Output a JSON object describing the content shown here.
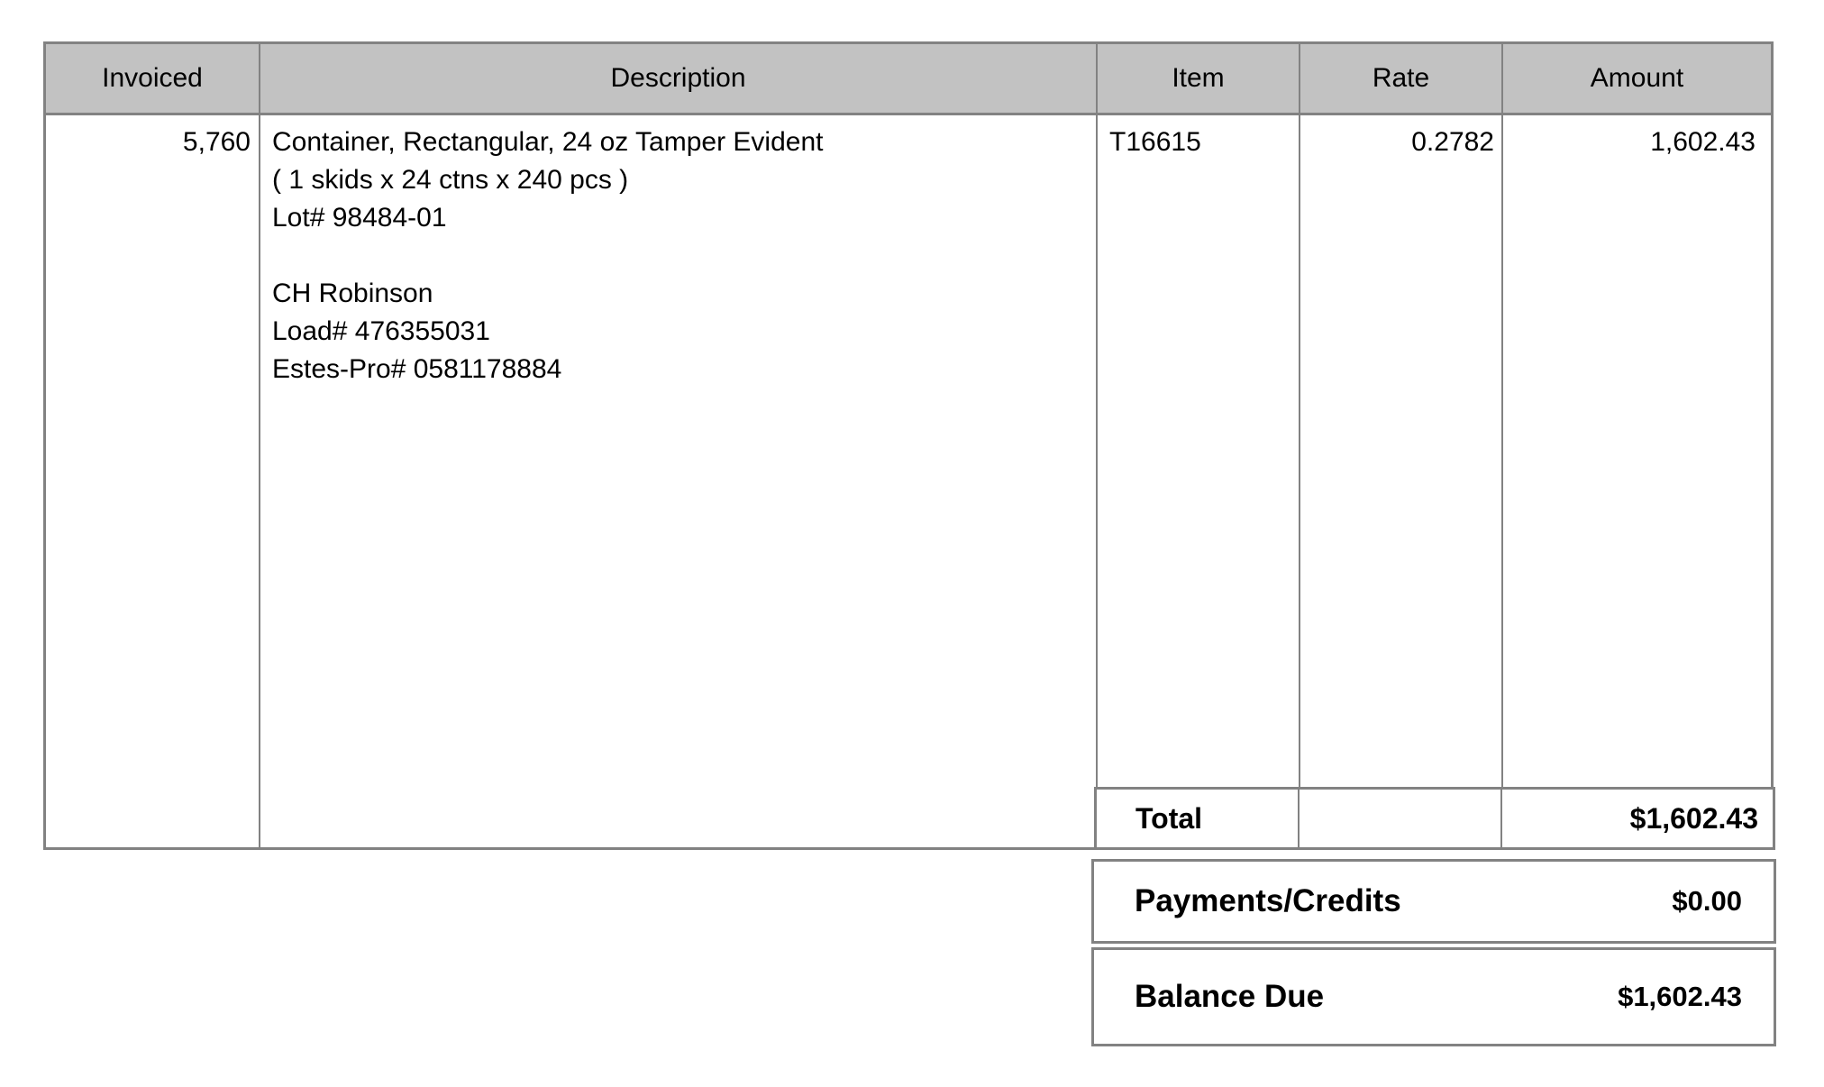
{
  "table": {
    "headers": {
      "invoiced": "Invoiced",
      "description": "Description",
      "item": "Item",
      "rate": "Rate",
      "amount": "Amount"
    },
    "row": {
      "invoiced": "5,760",
      "description": "Container, Rectangular, 24 oz Tamper Evident\n( 1 skids x 24 ctns x 240 pcs )\nLot# 98484-01\n\nCH Robinson\nLoad# 476355031\nEstes-Pro# 0581178884",
      "item": "T16615",
      "rate": "0.2782",
      "amount": "1,602.43"
    },
    "total": {
      "label": "Total",
      "amount": "$1,602.43"
    }
  },
  "summary": {
    "payments_credits": {
      "label": "Payments/Credits",
      "amount": "$0.00"
    },
    "balance_due": {
      "label": "Balance Due",
      "amount": "$1,602.43"
    }
  },
  "colors": {
    "header_bg": "#c2c2c2",
    "border": "#828282",
    "text": "#000000",
    "page_bg": "#ffffff"
  }
}
